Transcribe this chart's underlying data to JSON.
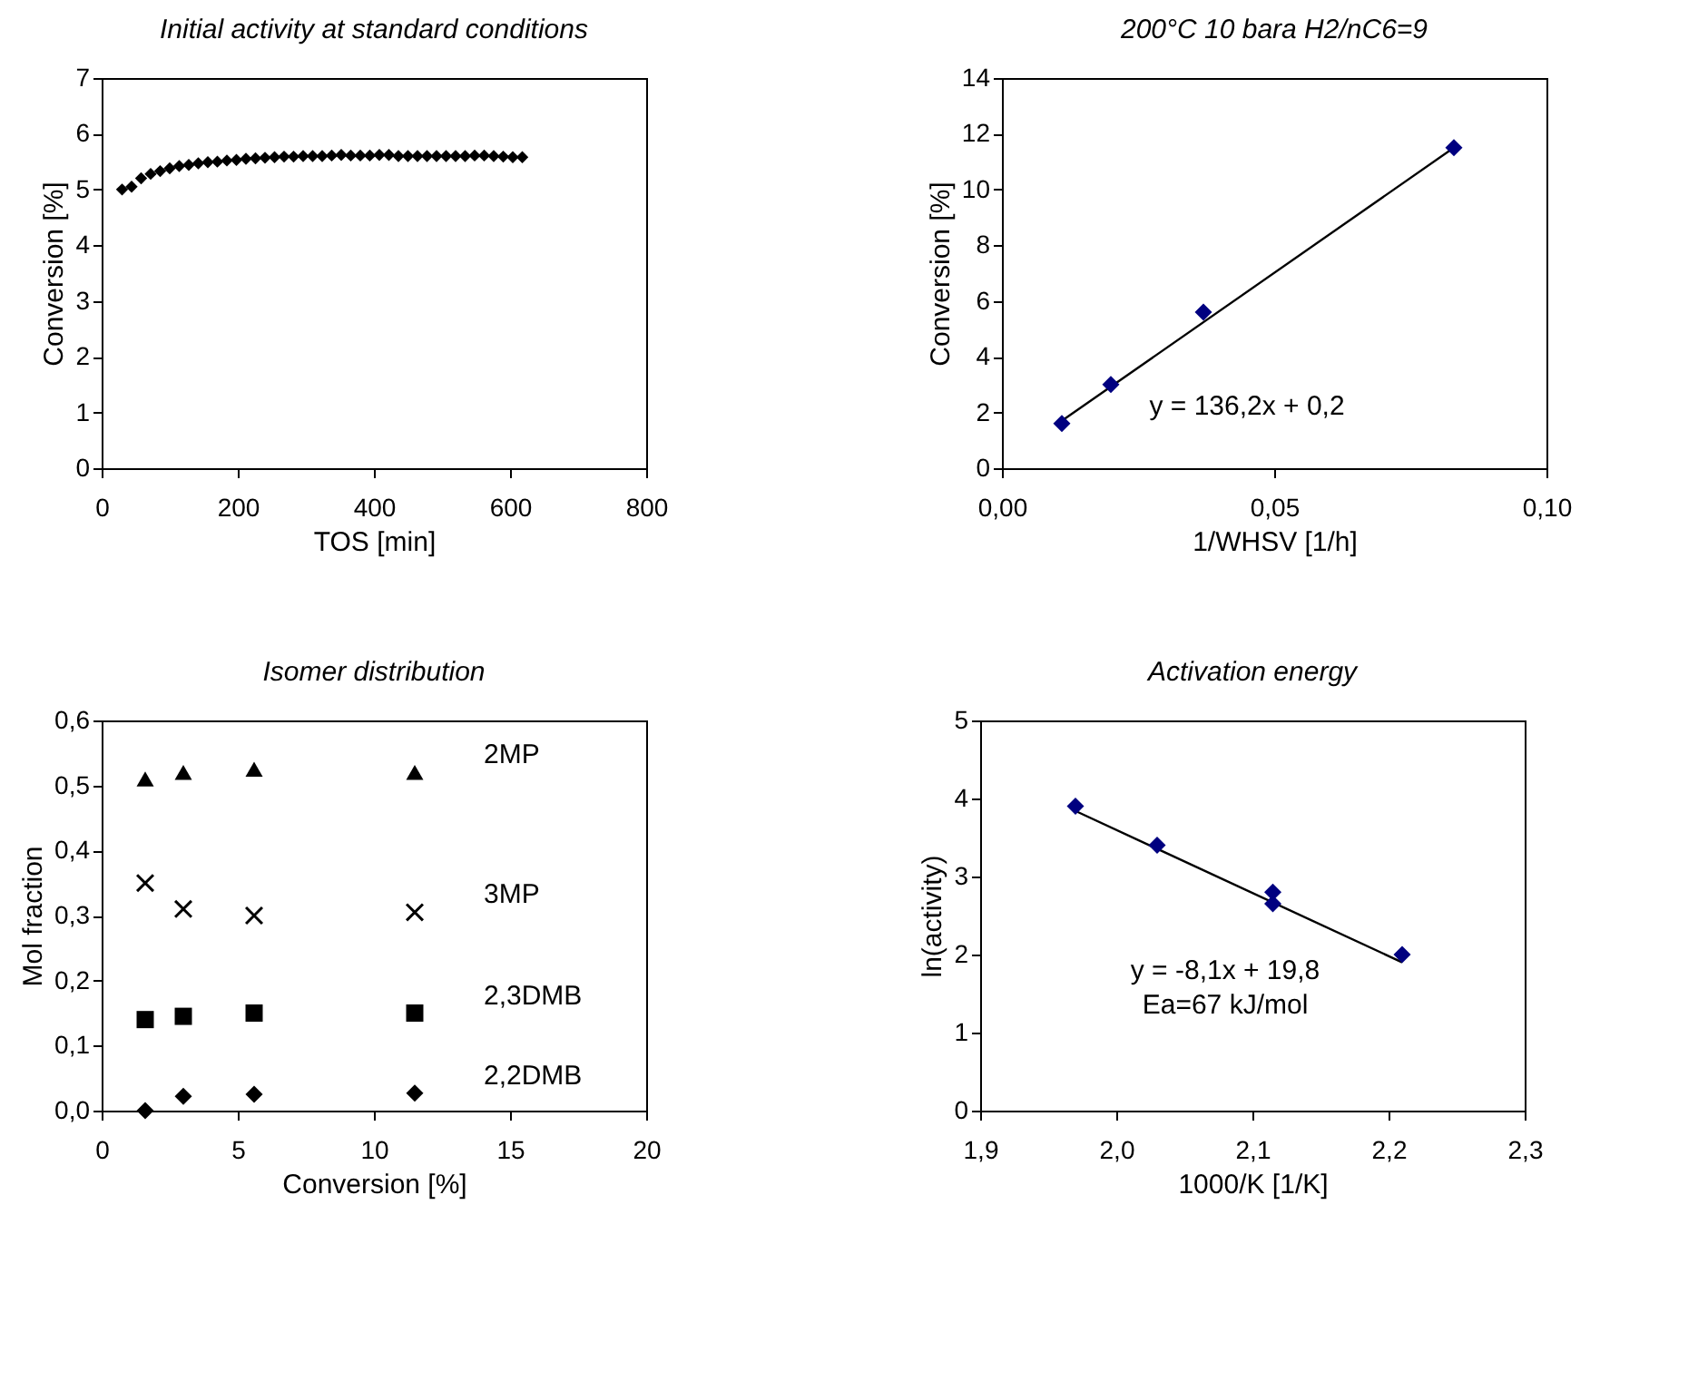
{
  "chart_data": [
    {
      "type": "scatter",
      "title": "Initial activity at standard conditions",
      "xlabel": "TOS [min]",
      "ylabel": "Conversion [%]",
      "xlim": [
        0,
        800
      ],
      "xticks": [
        0,
        200,
        400,
        600,
        800
      ],
      "ylim": [
        0,
        7
      ],
      "yticks": [
        0,
        1,
        2,
        3,
        4,
        5,
        6,
        7
      ],
      "grid": false,
      "series": [
        {
          "color": "#000000",
          "marker": "diamond",
          "x": [
            30,
            44,
            58,
            72,
            86,
            100,
            114,
            128,
            142,
            156,
            170,
            184,
            198,
            212,
            226,
            240,
            254,
            268,
            282,
            296,
            310,
            324,
            338,
            352,
            366,
            380,
            394,
            408,
            422,
            436,
            450,
            464,
            478,
            492,
            506,
            520,
            534,
            548,
            562,
            576,
            590,
            604,
            618
          ],
          "values": [
            5.0,
            5.05,
            5.2,
            5.28,
            5.33,
            5.38,
            5.42,
            5.44,
            5.47,
            5.49,
            5.5,
            5.52,
            5.53,
            5.55,
            5.56,
            5.57,
            5.58,
            5.59,
            5.59,
            5.6,
            5.6,
            5.6,
            5.61,
            5.62,
            5.61,
            5.61,
            5.61,
            5.62,
            5.62,
            5.6,
            5.6,
            5.6,
            5.6,
            5.6,
            5.6,
            5.6,
            5.6,
            5.61,
            5.61,
            5.6,
            5.59,
            5.58,
            5.58
          ]
        }
      ]
    },
    {
      "type": "scatter",
      "title": "200°C  10 bara  H2/nC6=9",
      "xlabel": "1/WHSV [1/h]",
      "ylabel": "Conversion [%]",
      "xlim": [
        0,
        0.1
      ],
      "xticks": [
        {
          "value": 0,
          "label": "0,00"
        },
        {
          "value": 0.05,
          "label": "0,05"
        },
        {
          "value": 0.1,
          "label": "0,10"
        }
      ],
      "ylim": [
        0,
        14
      ],
      "yticks": [
        0,
        2,
        4,
        6,
        8,
        10,
        12,
        14
      ],
      "grid": false,
      "annotations": [
        "y = 136,2x + 0,2"
      ],
      "series": [
        {
          "type": "line",
          "color": "#000000",
          "x": [
            0.011,
            0.083
          ],
          "values": [
            1.7,
            11.5
          ]
        },
        {
          "color": "#000080",
          "marker": "diamond",
          "x": [
            0.011,
            0.02,
            0.037,
            0.083
          ],
          "values": [
            1.6,
            3.0,
            5.6,
            11.5
          ]
        }
      ]
    },
    {
      "type": "scatter",
      "title": "Isomer distribution",
      "xlabel": "Conversion [%]",
      "ylabel": "Mol fraction",
      "xlim": [
        0,
        20
      ],
      "xticks": [
        0,
        5,
        10,
        15,
        20
      ],
      "ylim": [
        0,
        0.6
      ],
      "yticks": [
        {
          "value": 0,
          "label": "0,0"
        },
        {
          "value": 0.1,
          "label": "0,1"
        },
        {
          "value": 0.2,
          "label": "0,2"
        },
        {
          "value": 0.3,
          "label": "0,3"
        },
        {
          "value": 0.4,
          "label": "0,4"
        },
        {
          "value": 0.5,
          "label": "0,5"
        },
        {
          "value": 0.6,
          "label": "0,6"
        }
      ],
      "grid": false,
      "series": [
        {
          "name": "2MP",
          "color": "#000000",
          "marker": "triangle",
          "x": [
            1.6,
            3.0,
            5.6,
            11.5
          ],
          "values": [
            0.51,
            0.52,
            0.525,
            0.52
          ]
        },
        {
          "name": "3MP",
          "color": "#000000",
          "marker": "cross",
          "x": [
            1.6,
            3.0,
            5.6,
            11.5
          ],
          "values": [
            0.35,
            0.31,
            0.3,
            0.305
          ]
        },
        {
          "name": "2,3DMB",
          "color": "#000000",
          "marker": "square",
          "x": [
            1.6,
            3.0,
            5.6,
            11.5
          ],
          "values": [
            0.14,
            0.145,
            0.15,
            0.15
          ]
        },
        {
          "name": "2,2DMB",
          "color": "#000000",
          "marker": "diamond",
          "x": [
            1.6,
            3.0,
            5.6,
            11.5
          ],
          "values": [
            0.0,
            0.022,
            0.025,
            0.027
          ]
        }
      ]
    },
    {
      "type": "scatter",
      "title": "Activation energy",
      "xlabel": "1000/K [1/K]",
      "ylabel": "ln(activity)",
      "xlim": [
        1.9,
        2.3
      ],
      "xticks": [
        {
          "value": 1.9,
          "label": "1,9"
        },
        {
          "value": 2.0,
          "label": "2,0"
        },
        {
          "value": 2.1,
          "label": "2,1"
        },
        {
          "value": 2.2,
          "label": "2,2"
        },
        {
          "value": 2.3,
          "label": "2,3"
        }
      ],
      "ylim": [
        0,
        5
      ],
      "yticks": [
        0,
        1,
        2,
        3,
        4,
        5
      ],
      "grid": false,
      "annotations": [
        "y = -8,1x + 19,8",
        "Ea=67 kJ/mol"
      ],
      "series": [
        {
          "type": "line",
          "color": "#000000",
          "x": [
            1.97,
            2.21
          ],
          "values": [
            3.84,
            1.9
          ]
        },
        {
          "color": "#000080",
          "marker": "diamond",
          "x": [
            1.97,
            2.03,
            2.115,
            2.115,
            2.21
          ],
          "values": [
            3.9,
            3.4,
            2.8,
            2.65,
            2.0
          ]
        }
      ]
    }
  ]
}
